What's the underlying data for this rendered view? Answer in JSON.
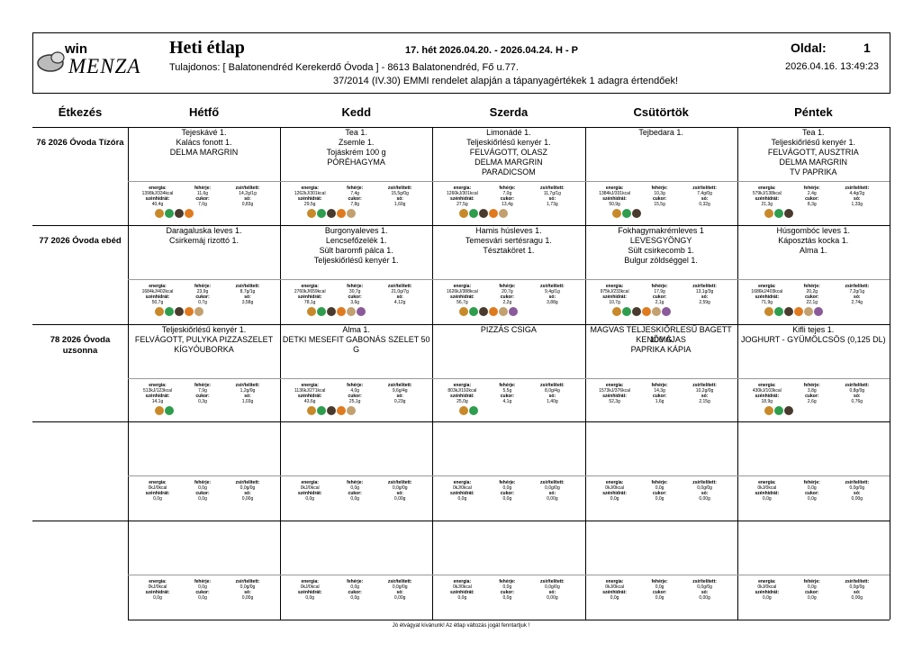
{
  "header": {
    "logo_small": "win",
    "logo_large": "MENZA",
    "title": "Heti étlap",
    "week": "17. hét 2026.04.20. - 2026.04.24. H - P",
    "owner": "Tulajdonos: [ Balatonendréd Kerekerdő Óvoda ] - 8613 Balatonendréd, Fő u.77.",
    "note": "37/2014 (IV.30) EMMI rendelet alapján a tápanyagértékek 1 adagra értendőek!",
    "page_label": "Oldal:",
    "page": "1",
    "timestamp": "2026.04.16. 13:49:23"
  },
  "table": {
    "headers": [
      "Étkezés",
      "Hétfő",
      "Kedd",
      "Szerda",
      "Csütörtök",
      "Péntek"
    ],
    "nutrition_labels": [
      "energia:",
      "fehérje:",
      "zsír/telített:",
      "szénhidrát:",
      "cukor:",
      "só:"
    ],
    "rows": [
      {
        "meal": "76 2026 Óvoda Tízóra",
        "days": [
          {
            "items": [
              "Tejeskávé 1.",
              "Kalács fonott 1.",
              "DELMA MARGRIN"
            ],
            "nutrition": [
              "1398kJ/334kcal",
              "11,6g",
              "14,2g/1g",
              "40,4g",
              "7,0g",
              "0,83g"
            ]
          },
          {
            "items": [
              "Tea 1.",
              "Zsemle  1.",
              "Tojáskrém 100 g",
              "PÓRÉHAGYMA"
            ],
            "nutrition": [
              "1262kJ/301kcal",
              "7,4g",
              "15,5g/0g",
              "29,5g",
              "7,8g",
              "1,60g"
            ]
          },
          {
            "items": [
              "Limonádé 1.",
              "Teljeskiőrlésű kenyér 1.",
              "FELVÁGOTT, OLASZ",
              "DELMA MARGRIN",
              "PARADICSOM"
            ],
            "nutrition": [
              "1260kJ/301kcal",
              "7,0g",
              "11,7g/1g",
              "27,5g",
              "13,4g",
              "1,73g"
            ]
          },
          {
            "items": [
              "Tejbedara 1."
            ],
            "nutrition": [
              "1384kJ/331kcal",
              "10,3g",
              "7,4g/0g",
              "50,9g",
              "15,5g",
              "0,32g"
            ]
          },
          {
            "items": [
              "Tea 1.",
              "Teljeskiőrlésű kenyér 1.",
              "FELVÁGOTT, AUSZTRIA",
              "DELMA MARGRIN",
              "TV PAPRIKA"
            ],
            "nutrition": [
              "579kJ/138kcal",
              "2,4g",
              "4,4g/2g",
              "21,3g",
              "8,3g",
              "1,33g"
            ]
          }
        ]
      },
      {
        "meal": "77 2026 Óvoda ebéd",
        "days": [
          {
            "items": [
              "Daragaluska leves 1.",
              "Csirkemáj rizottó 1."
            ],
            "nutrition": [
              "1684kJ/402kcal",
              "23,9g",
              "8,7g/1g",
              "50,7g",
              "0,7g",
              "3,58g"
            ]
          },
          {
            "items": [
              "Burgonyaleves 1.",
              "Lencsefőzelék 1.",
              "Sült baromfi pálca 1.",
              "Teljeskiőrlésű kenyér 1."
            ],
            "nutrition": [
              "2760kJ/659kcal",
              "30,7g",
              "21,0g/7g",
              "78,1g",
              "3,6g",
              "4,12g"
            ]
          },
          {
            "items": [
              "Hamis húsleves 1.",
              "Temesvári sertésragu 1.",
              "Tésztaköret 1."
            ],
            "nutrition": [
              "1626kJ/388kcal",
              "20,7g",
              "9,4g/1g",
              "56,7g",
              "2,2g",
              "3,88g"
            ]
          },
          {
            "items": [
              "Fokhagymakrémleves  1",
              "LEVESGYÖNGY",
              "Sült csirkecomb 1.",
              "Bulgur zöldséggel 1."
            ],
            "nutrition": [
              "975kJ/233kcal",
              "17,9g",
              "13,1g/3g",
              "10,7g",
              "2,1g",
              "2,59g"
            ]
          },
          {
            "items": [
              "Húsgombóc leves 1.",
              "Káposztás kocka 1.",
              "Alma 1."
            ],
            "nutrition": [
              "1686kJ/403kcal",
              "20,2g",
              "7,2g/1g",
              "71,9g",
              "22,1g",
              "2,74g"
            ]
          }
        ]
      },
      {
        "meal": "78 2026 Óvoda uzsonna",
        "days": [
          {
            "items": [
              "Teljeskiőrlésű kenyér 1.",
              "FELVÁGOTT, PULYKA PIZZASZELET",
              "KÍGYÓUBORKA"
            ],
            "nutrition": [
              "513kJ/123kcal",
              "7,9g",
              "1,2g/0g",
              "14,1g",
              "0,3g",
              "1,03g"
            ]
          },
          {
            "items": [
              "Alma 1.",
              "DETKI MESEFIT GABONÁS SZELET 50 G"
            ],
            "nutrition": [
              "1136kJ/271kcal",
              "4,0g",
              "9,6g/4g",
              "43,6g",
              "25,1g",
              "0,23g"
            ]
          },
          {
            "items": [
              "PIZZÁS CSIGA"
            ],
            "nutrition": [
              "803kJ/192kcal",
              "5,5g",
              "8,0g/4g",
              "25,0g",
              "4,1g",
              "1,40g"
            ]
          },
          {
            "items": [
              "MAGVAS TELJESKIŐRLESŰ BAGETT 100 G",
              "KENŐMÁJAS",
              "PAPRIKA KÁPIA"
            ],
            "nutrition": [
              "1573kJ/376kcal",
              "14,3g",
              "10,2g/0g",
              "52,3g",
              "1,6g",
              "2,15g"
            ]
          },
          {
            "items": [
              "Kifli tejes 1.",
              "JOGHURT - GYÜMÖLCSÖS (0,125 DL)"
            ],
            "nutrition": [
              "430kJ/103kcal",
              "3,8g",
              "0,8g/0g",
              "18,9g",
              "2,6g",
              "0,76g"
            ]
          }
        ]
      },
      {
        "days": [
          {
            "nutrition": [
              "0kJ/0kcal",
              "0,0g",
              "0,0g/0g",
              "0,0g",
              "0,0g",
              "0,00g"
            ]
          },
          {
            "nutrition": [
              "0kJ/0kcal",
              "0,0g",
              "0,0g/0g",
              "0,0g",
              "0,0g",
              "0,00g"
            ]
          },
          {
            "nutrition": [
              "0kJ/0kcal",
              "0,0g",
              "0,0g/0g",
              "0,0g",
              "0,0g",
              "0,00g"
            ]
          },
          {
            "nutrition": [
              "0kJ/0kcal",
              "0,0g",
              "0,0g/0g",
              "0,0g",
              "0,0g",
              "0,00g"
            ]
          },
          {
            "nutrition": [
              "0kJ/0kcal",
              "0,0g",
              "0,0g/0g",
              "0,0g",
              "0,0g",
              "0,00g"
            ]
          }
        ]
      },
      {
        "days": [
          {
            "nutrition": [
              "0kJ/0kcal",
              "0,0g",
              "0,0g/0g",
              "0,0g",
              "0,0g",
              "0,00g"
            ]
          },
          {
            "nutrition": [
              "0kJ/0kcal",
              "0,0g",
              "0,0g/0g",
              "0,0g",
              "0,0g",
              "0,00g"
            ]
          },
          {
            "nutrition": [
              "0kJ/0kcal",
              "0,0g",
              "0,0g/0g",
              "0,0g",
              "0,0g",
              "0,00g"
            ]
          },
          {
            "nutrition": [
              "0kJ/0kcal",
              "0,0g",
              "0,0g/0g",
              "0,0g",
              "0,0g",
              "0,00g"
            ]
          },
          {
            "nutrition": [
              "0kJ/0kcal",
              "0,0g",
              "0,0g/0g",
              "0,0g",
              "0,0g",
              "0,00g"
            ]
          }
        ]
      }
    ]
  },
  "footer": "Jó étvágyat kívánunk! Az étlap változás jogát fenntartjuk !"
}
